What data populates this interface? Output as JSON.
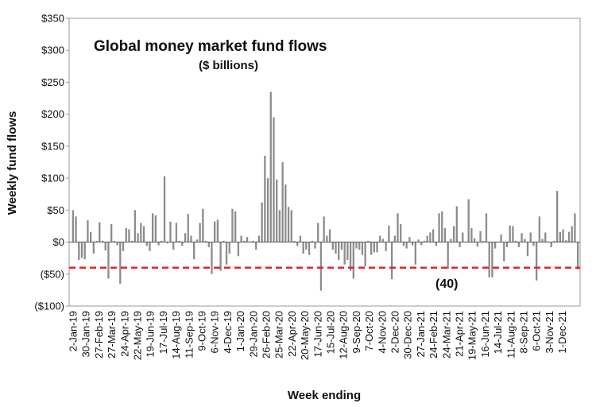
{
  "chart_data": {
    "type": "bar",
    "title": "Global money market fund flows",
    "subtitle": "($ billions)",
    "xlabel": "Week ending",
    "ylabel": "Weekly fund flows",
    "ylim": [
      -100,
      350
    ],
    "yticks": [
      -100,
      -50,
      0,
      50,
      100,
      150,
      200,
      250,
      300,
      350
    ],
    "ytick_labels": [
      "($100)",
      "($50)",
      "$0",
      "$50",
      "$100",
      "$150",
      "$200",
      "$250",
      "$300",
      "$350"
    ],
    "xtick_labels": [
      "2-Jan-19",
      "30-Jan-19",
      "27-Feb-19",
      "27-Mar-19",
      "24-Apr-19",
      "22-May-19",
      "19-Jun-19",
      "17-Jul-19",
      "14-Aug-19",
      "11-Sep-19",
      "9-Oct-19",
      "6-Nov-19",
      "4-Dec-19",
      "1-Jan-20",
      "29-Jan-20",
      "26-Feb-20",
      "25-Mar-20",
      "22-Apr-20",
      "20-May-20",
      "17-Jun-20",
      "15-Jul-20",
      "12-Aug-20",
      "9-Sep-20",
      "7-Oct-20",
      "4-Nov-20",
      "2-Dec-20",
      "30-Dec-20",
      "27-Jan-21",
      "24-Feb-21",
      "24-Mar-21",
      "21-Apr-21",
      "19-May-21",
      "16-Jun-21",
      "14-Jul-21",
      "11-Aug-21",
      "8-Sep-21",
      "6-Oct-21",
      "3-Nov-21",
      "1-Dec-21"
    ],
    "bar_color": "#8c8c8c",
    "reference_line": {
      "value": -40,
      "label": "(40)",
      "color": "#e0262a",
      "style": "dashed"
    },
    "grid": false,
    "series": [
      {
        "values": [
          50,
          40,
          -28,
          -25,
          -27,
          34,
          16,
          -18,
          2,
          31,
          2,
          -13,
          -57,
          28,
          2,
          -5,
          -65,
          -14,
          22,
          20,
          2,
          50,
          14,
          30,
          25,
          -6,
          -14,
          45,
          42,
          -5,
          2,
          103,
          -2,
          32,
          -12,
          30,
          2,
          -6,
          14,
          44,
          10,
          -27,
          4,
          30,
          52,
          2,
          -8,
          -50,
          32,
          35,
          -45,
          2,
          -35,
          -18,
          52,
          48,
          -22,
          10,
          2,
          8,
          1,
          2,
          -12,
          10,
          62,
          135,
          100,
          235,
          195,
          98,
          50,
          125,
          90,
          55,
          50,
          2,
          -6,
          10,
          -18,
          -12,
          -20,
          2,
          -10,
          30,
          -76,
          40,
          10,
          20,
          -12,
          -18,
          -28,
          -12,
          -35,
          -28,
          -45,
          -57,
          -10,
          -12,
          -20,
          -38,
          2,
          -20,
          -16,
          -16,
          10,
          5,
          -14,
          26,
          -58,
          10,
          45,
          28,
          -6,
          -10,
          8,
          -5,
          -35,
          4,
          -5,
          2,
          10,
          15,
          20,
          -6,
          45,
          48,
          22,
          -42,
          5,
          25,
          56,
          -8,
          15,
          0,
          67,
          22,
          6,
          -7,
          17,
          2,
          45,
          -55,
          -55,
          -10,
          0,
          12,
          -30,
          -8,
          26,
          25,
          2,
          -8,
          14,
          5,
          -22,
          15,
          -6,
          -60,
          40,
          5,
          15,
          1,
          -8,
          2,
          80,
          16,
          20,
          3,
          16,
          25,
          45,
          -43
        ]
      }
    ]
  }
}
